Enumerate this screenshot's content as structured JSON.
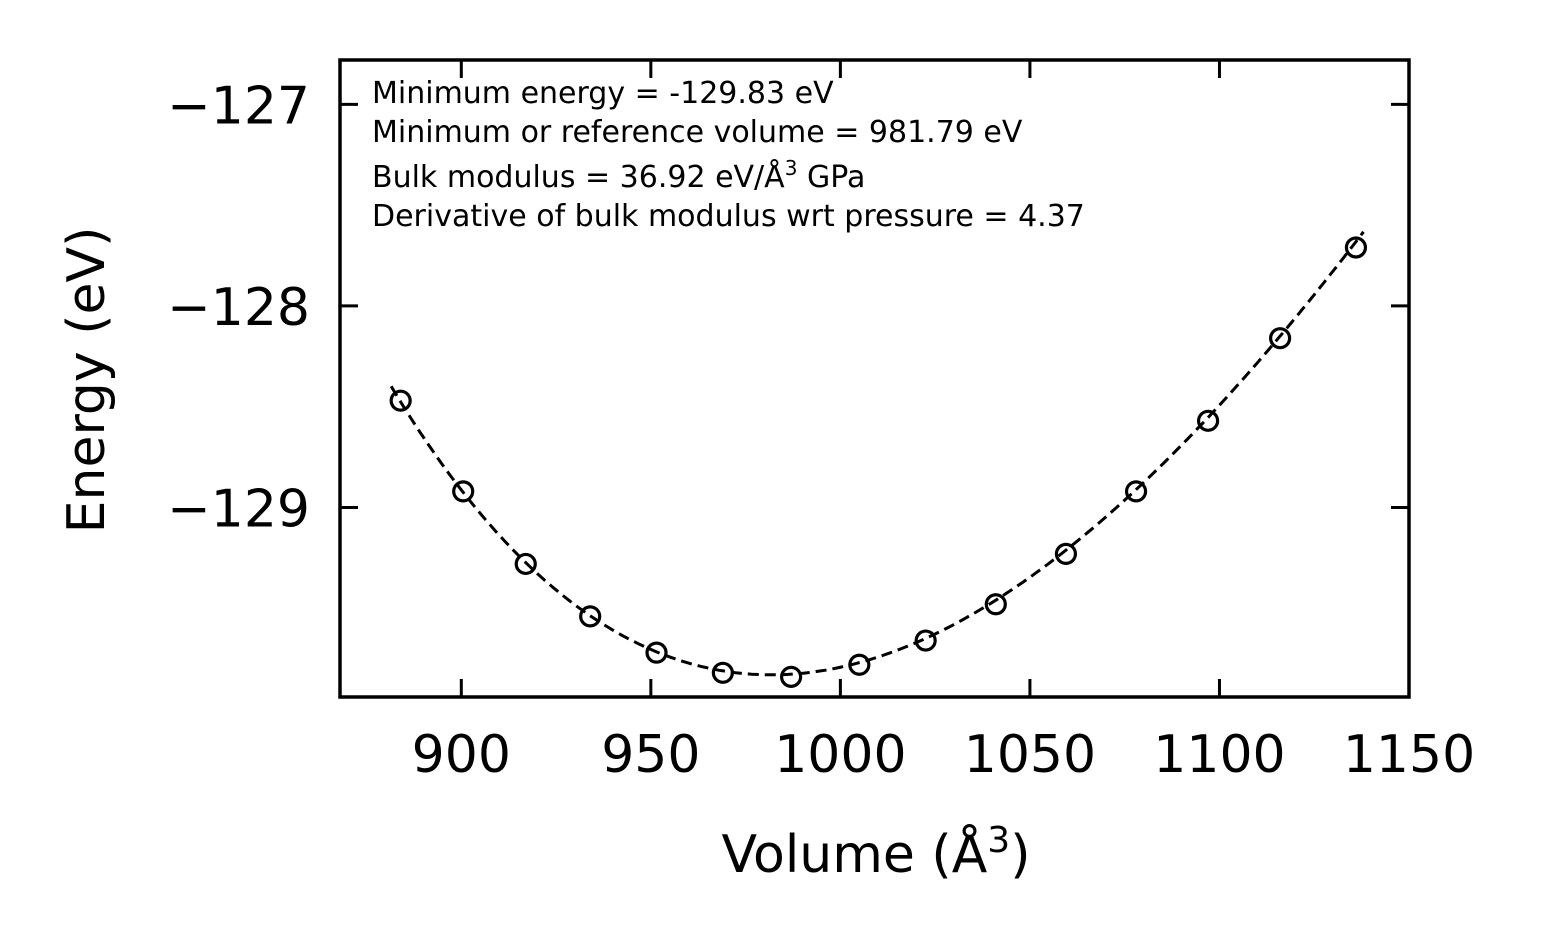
{
  "chart_data": {
    "type": "scatter",
    "xlabel": "Volume (Å",
    "xlabel_sup": "3",
    "xlabel_end": ")",
    "ylabel": "Energy (eV)",
    "xlim": [
      868,
      1150
    ],
    "ylim": [
      -129.94,
      -126.78
    ],
    "xticks": [
      900,
      950,
      1000,
      1050,
      1100,
      1150
    ],
    "xtick_labels": [
      "900",
      "950",
      "1000",
      "1050",
      "1100",
      "1150"
    ],
    "yticks": [
      -127,
      -128,
      -129
    ],
    "ytick_labels": [
      "−127",
      "−128",
      "−129"
    ],
    "series": [
      {
        "name": "data",
        "marker": "open-circle",
        "x": [
          884,
          900.5,
          917,
          934,
          951.5,
          969,
          987,
          1005,
          1022.5,
          1041,
          1059.5,
          1078,
          1097,
          1116,
          1136
        ],
        "y": [
          -128.47,
          -128.92,
          -129.28,
          -129.54,
          -129.72,
          -129.82,
          -129.84,
          -129.78,
          -129.66,
          -129.48,
          -129.23,
          -128.92,
          -128.57,
          -128.16,
          -127.71
        ]
      },
      {
        "name": "fit",
        "style": "dashed",
        "fit_params": {
          "E0": -129.83,
          "V0": 981.79,
          "B0": 36.92,
          "B0p": 4.37
        },
        "x_range": [
          881.5,
          1138
        ]
      }
    ],
    "annotations": {
      "line1": "Minimum energy = -129.83 eV",
      "line2": "Minimum or reference volume = 981.79 eV",
      "line3_pre": "Bulk modulus = 36.92 eV/Å",
      "line3_sup": "3",
      "line3_post": " GPa",
      "line4": "Derivative of bulk modulus wrt pressure = 4.37"
    },
    "colors": {
      "axes": "#000000",
      "markers": "#000000",
      "fit": "#000000",
      "background": "#ffffff"
    }
  }
}
